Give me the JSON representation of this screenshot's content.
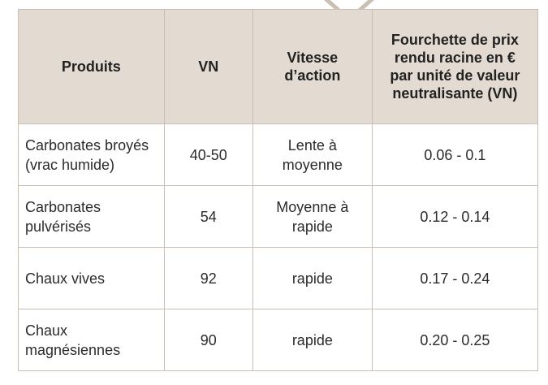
{
  "table": {
    "headers": {
      "produits": "Produits",
      "vn": "VN",
      "vitesse": "Vitesse d’action",
      "fourchette": "Fourchette de prix rendu racine en € par unité de valeur neutralisante (VN)"
    },
    "rows": [
      {
        "produit": "Carbonates broyés (vrac humide)",
        "vn": "40-50",
        "vitesse": "Lente à moyenne",
        "prix": "0.06 - 0.1"
      },
      {
        "produit": "Carbonates pulvérisés",
        "vn": "54",
        "vitesse": "Moyenne à rapide",
        "prix": "0.12 - 0.14"
      },
      {
        "produit": "Chaux vives",
        "vn": "92",
        "vitesse": "rapide",
        "prix": "0.17 - 0.24"
      },
      {
        "produit": "Chaux magnésiennes",
        "vn": "90",
        "vitesse": "rapide",
        "prix": "0.20 - 0.25"
      }
    ]
  },
  "colors": {
    "header_bg": "#e3dbd2",
    "border": "#c9bfb3",
    "arrow": "#c9bfb3"
  },
  "icons": {
    "arrow": "chevron-down-icon"
  }
}
